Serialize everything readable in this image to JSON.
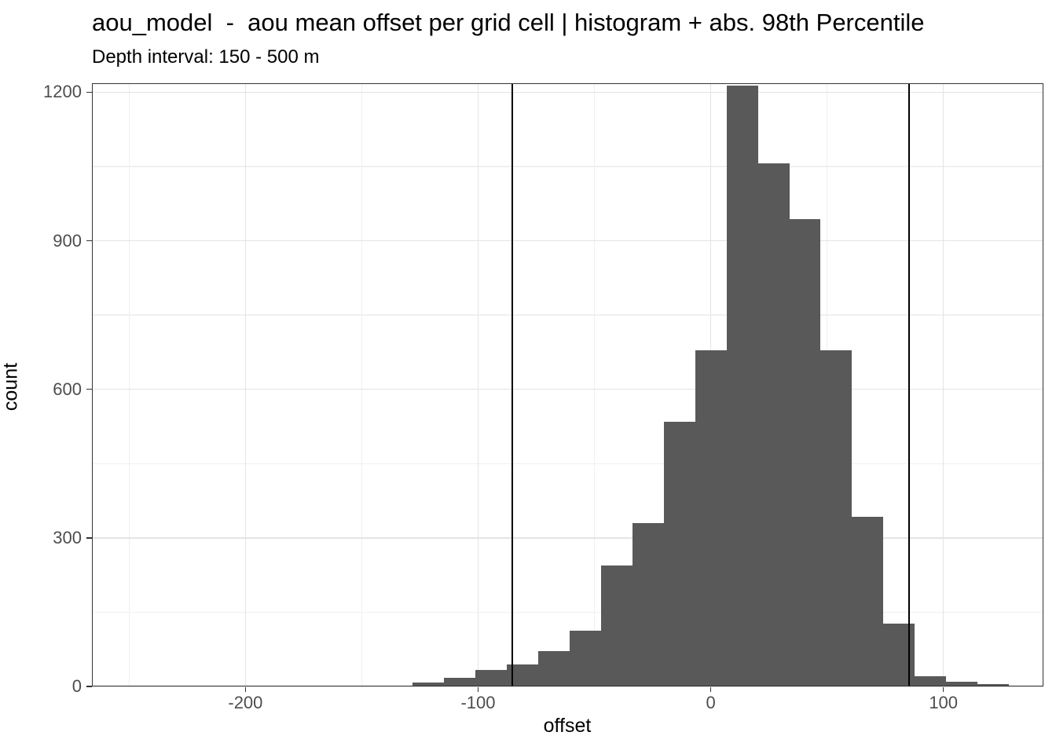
{
  "figure": {
    "title": "aou_model  -  aou mean offset per grid cell | histogram + abs. 98th Percentile",
    "subtitle": "Depth interval: 150 - 500 m"
  },
  "chart_data": {
    "type": "bar",
    "subtype": "histogram",
    "title": "aou_model  -  aou mean offset per grid cell | histogram + abs. 98th Percentile",
    "subtitle": "Depth interval: 150 - 500 m",
    "xlabel": "offset",
    "ylabel": "count",
    "bin_width": 13.5,
    "bin_centers": [
      -121.5,
      -108,
      -94.5,
      -81,
      -67.5,
      -54,
      -40.5,
      -27,
      -13.5,
      0,
      13.5,
      27,
      40.5,
      54,
      67.5,
      81,
      94.5,
      108,
      121.5
    ],
    "counts": [
      8,
      18,
      33,
      45,
      72,
      112,
      244,
      330,
      534,
      679,
      1214,
      1057,
      944,
      679,
      342,
      127,
      21,
      10,
      4
    ],
    "vlines": {
      "meaning": "abs. 98th Percentile of offset",
      "values": [
        -85.4,
        85.4
      ],
      "color": "#000000"
    },
    "xlim": [
      -266,
      143
    ],
    "ylim": [
      0,
      1218
    ],
    "x_ticks": [
      -200,
      -100,
      0,
      100
    ],
    "y_ticks": [
      0,
      300,
      600,
      900,
      1200
    ],
    "x_minor_gridlines": [
      -250,
      -150,
      -50,
      50
    ],
    "y_minor_gridlines": [
      150,
      450,
      750,
      1050
    ],
    "grid": "on",
    "legend_position": "none",
    "colors": {
      "bar_fill": "#595959",
      "vline": "#000000",
      "grid_major": "#e4e4e4",
      "grid_minor": "#f0f0f0",
      "panel_border": "#333333",
      "axis_text": "#4d4d4d",
      "title_text": "#000000",
      "background": "#ffffff"
    }
  }
}
